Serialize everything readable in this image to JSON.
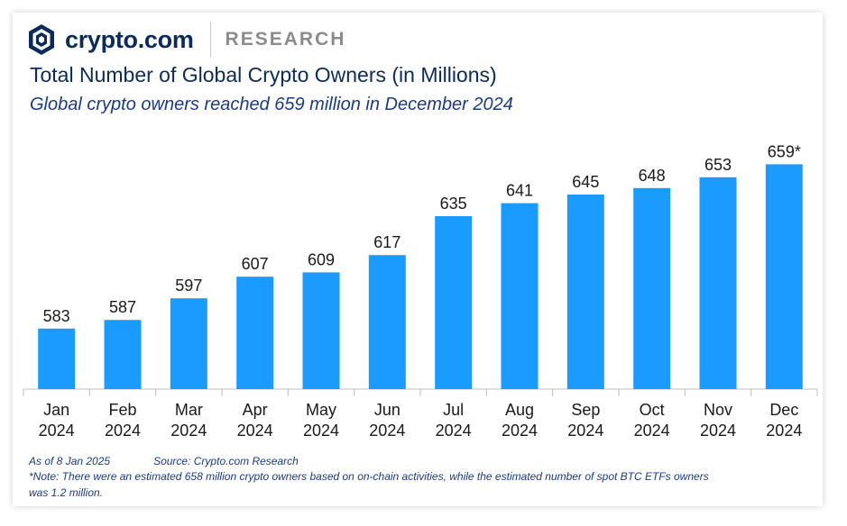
{
  "brand": {
    "name": "crypto.com",
    "section": "RESEARCH"
  },
  "colors": {
    "bar": "#1a9bff",
    "title": "#0b2b5c",
    "note": "#1a3a8c"
  },
  "chart_data": {
    "type": "bar",
    "title": "Total Number of Global Crypto Owners (in Millions)",
    "subtitle": "Global crypto owners reached 659 million in December 2024",
    "categories": [
      "Jan\n2024",
      "Feb\n2024",
      "Mar\n2024",
      "Apr\n2024",
      "May\n2024",
      "Jun\n2024",
      "Jul\n2024",
      "Aug\n2024",
      "Sep\n2024",
      "Oct\n2024",
      "Nov\n2024",
      "Dec\n2024"
    ],
    "values": [
      583,
      587,
      597,
      607,
      609,
      617,
      635,
      641,
      645,
      648,
      653,
      659
    ],
    "data_labels": [
      "583",
      "587",
      "597",
      "607",
      "609",
      "617",
      "635",
      "641",
      "645",
      "648",
      "653",
      "659*"
    ],
    "ylim": [
      555,
      665
    ],
    "grid": false,
    "legend": "none"
  },
  "footer": {
    "as_of": "As of 8 Jan 2025",
    "source": "Source: Crypto.com Research",
    "note_line1": "*Note: There were an estimated 658 million crypto owners based on on-chain activities, while the estimated number of spot BTC ETFs owners",
    "note_line2": "was 1.2 million."
  }
}
